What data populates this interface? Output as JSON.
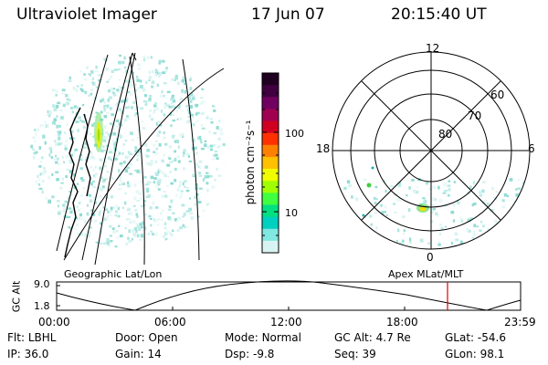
{
  "header": {
    "instrument": "Ultraviolet Imager",
    "date": "17 Jun 07",
    "time": "20:15:40 UT"
  },
  "colorbar": {
    "unit_label": "photon cm⁻²s⁻¹",
    "ticks": [
      "100",
      "10"
    ],
    "colors": [
      "#200020",
      "#400040",
      "#700060",
      "#a00050",
      "#d00020",
      "#ff3000",
      "#ff8000",
      "#ffc000",
      "#f0ff00",
      "#a0ff00",
      "#40ff40",
      "#00e080",
      "#00d0c0",
      "#80e8e0",
      "#d8f4f2"
    ]
  },
  "left_panel": {
    "label": "Geographic Lat/Lon"
  },
  "right_panel": {
    "label": "Apex MLat/MLT",
    "mlt_labels": {
      "top": "12",
      "left": "18",
      "right": "6",
      "bottom": "0"
    },
    "lat_labels": [
      "60",
      "70",
      "80"
    ]
  },
  "altitude_plot": {
    "ylabel": "GC Alt",
    "ytick_top": "9.0",
    "ytick_bottom": "1.8",
    "time_ticks": [
      "00:00",
      "06:00",
      "12:00",
      "18:00",
      "23:59"
    ],
    "current_time_color": "#e00000"
  },
  "footer": {
    "row1": [
      {
        "label": "Flt:",
        "value": "LBHL"
      },
      {
        "label": "Door:",
        "value": "Open"
      },
      {
        "label": "Mode:",
        "value": "Normal"
      },
      {
        "label": "GC Alt:",
        "value": "4.7 Re"
      },
      {
        "label": "GLat:",
        "value": "-54.6"
      }
    ],
    "row2": [
      {
        "label": "IP:",
        "value": "36.0"
      },
      {
        "label": "Gain:",
        "value": "14"
      },
      {
        "label": "Dsp:",
        "value": "-9.8"
      },
      {
        "label": "Seq:",
        "value": "39"
      },
      {
        "label": "GLon:",
        "value": "98.1"
      }
    ]
  }
}
